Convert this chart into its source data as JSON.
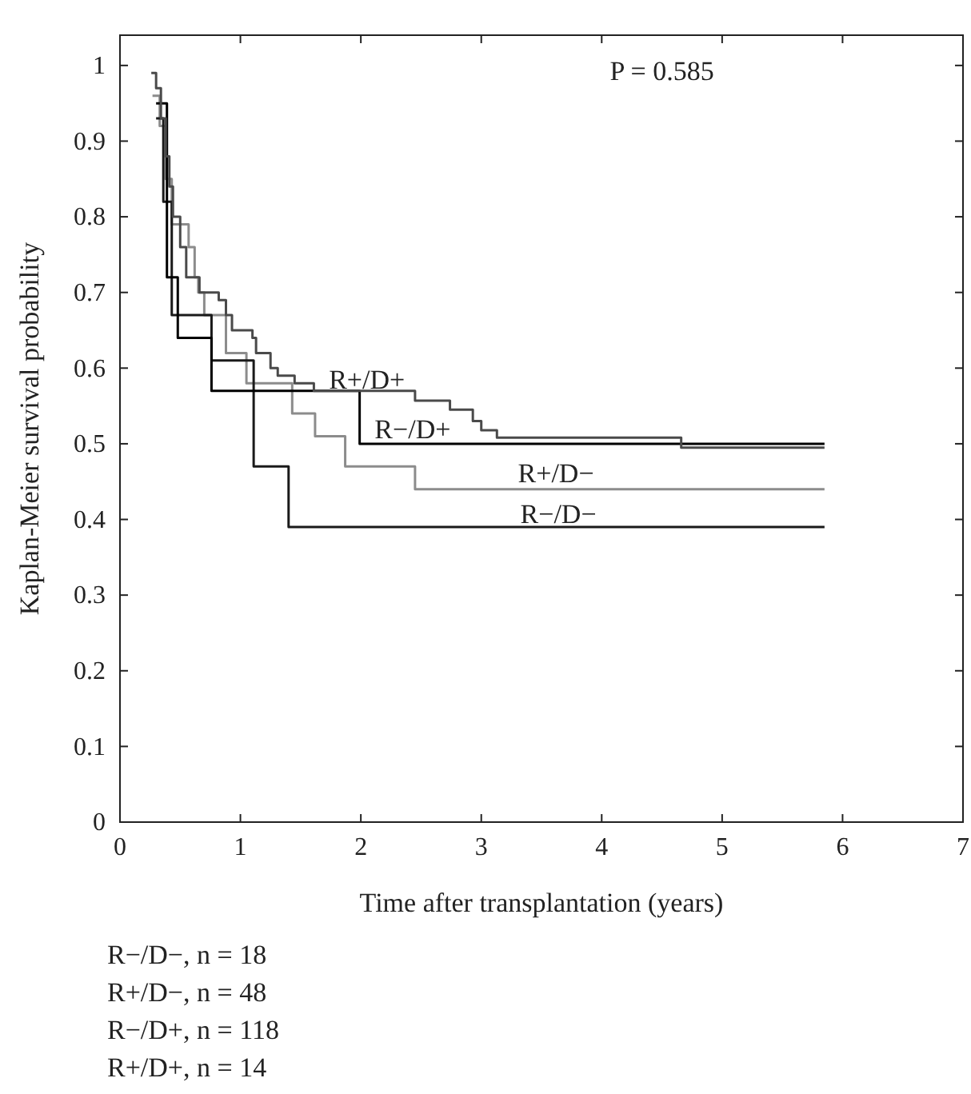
{
  "chart_data": {
    "type": "step",
    "xlabel": "Time after transplantation (years)",
    "ylabel": "Kaplan-Meier survival probability",
    "xlim": [
      0,
      7
    ],
    "xticks": [
      0,
      1,
      2,
      3,
      4,
      5,
      6,
      7
    ],
    "ylim": [
      0,
      1.04
    ],
    "yticks": [
      0,
      0.1,
      0.2,
      0.3,
      0.4,
      0.5,
      0.6,
      0.7,
      0.8,
      0.9,
      1
    ],
    "grid": false,
    "marker": "none",
    "line_style": "solid",
    "series": [
      {
        "color": "#8c8c8c",
        "x": [
          0.27,
          0.33,
          0.38,
          0.43,
          0.57,
          0.62,
          0.65,
          0.7,
          0.88,
          1.05,
          1.43,
          1.62,
          1.87,
          2.45,
          5.85
        ],
        "values": [
          0.96,
          0.92,
          0.85,
          0.79,
          0.76,
          0.72,
          0.7,
          0.67,
          0.62,
          0.58,
          0.54,
          0.51,
          0.47,
          0.44,
          0.44
        ]
      },
      {
        "color": "#1a1a1a",
        "x": [
          0.3,
          0.36,
          0.43,
          0.76,
          1.11,
          1.4,
          5.85
        ],
        "values": [
          0.93,
          0.82,
          0.67,
          0.61,
          0.47,
          0.39,
          0.39
        ]
      },
      {
        "color": "#000000",
        "x": [
          0.3,
          0.39,
          0.48,
          0.76,
          1.99,
          5.85
        ],
        "values": [
          0.95,
          0.72,
          0.64,
          0.57,
          0.5,
          0.5
        ]
      },
      {
        "color": "#4a4a4a",
        "x": [
          0.26,
          0.3,
          0.34,
          0.38,
          0.41,
          0.44,
          0.5,
          0.55,
          0.66,
          0.82,
          0.88,
          0.93,
          1.1,
          1.13,
          1.25,
          1.31,
          1.45,
          1.61,
          2.45,
          2.74,
          2.93,
          3.0,
          3.13,
          4.66,
          5.85
        ],
        "values": [
          0.99,
          0.97,
          0.93,
          0.88,
          0.84,
          0.8,
          0.76,
          0.72,
          0.7,
          0.69,
          0.67,
          0.65,
          0.64,
          0.62,
          0.6,
          0.59,
          0.58,
          0.57,
          0.557,
          0.545,
          0.53,
          0.518,
          0.508,
          0.495,
          0.495
        ]
      }
    ],
    "annotations": [
      "P = 0.585",
      "R+/D+",
      "R−/D+",
      "R+/D−",
      "R−/D−",
      "R−/D−, n = 18",
      "R+/D−, n = 48",
      "R−/D+, n = 118",
      "R+/D+, n = 14"
    ]
  }
}
